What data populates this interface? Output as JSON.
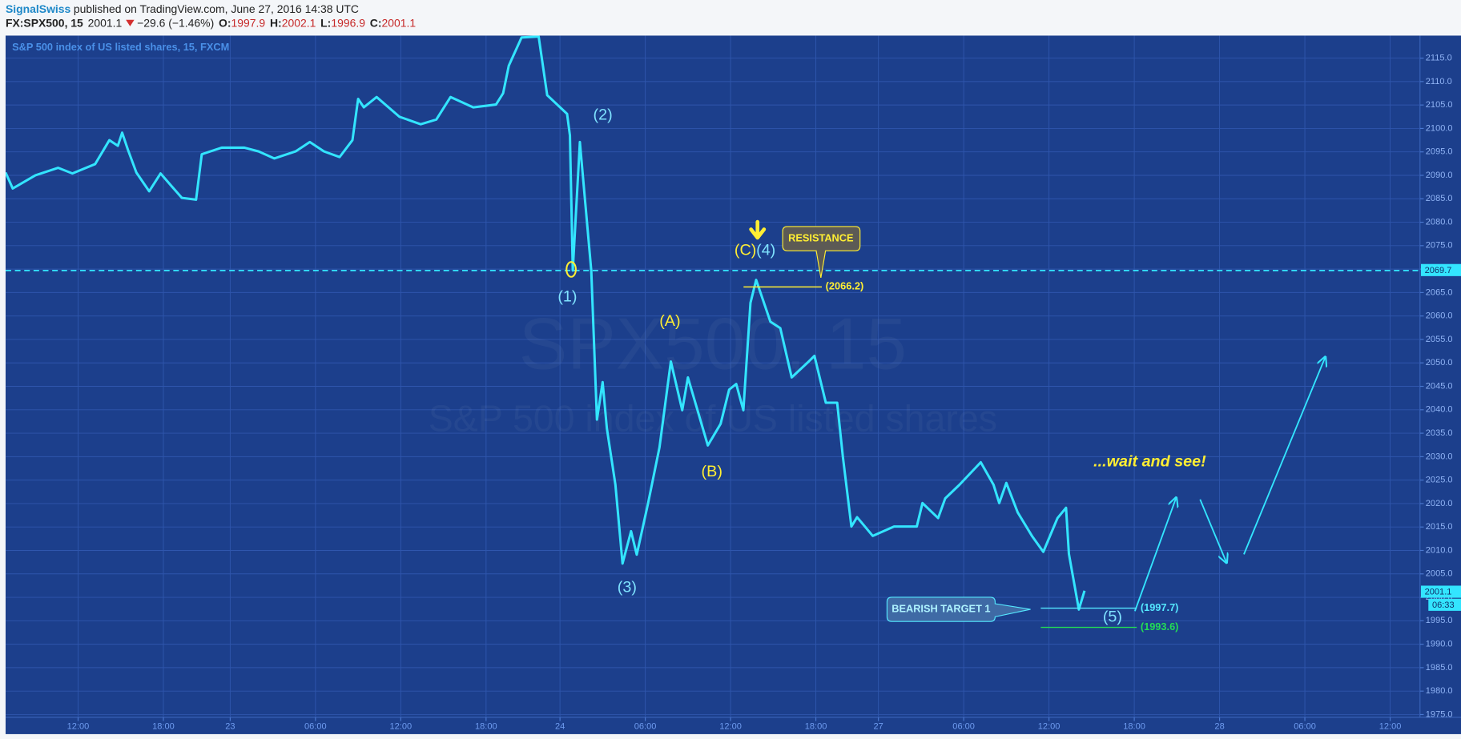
{
  "header": {
    "author": "SignalSwiss",
    "published": "published on TradingView.com, June 27, 2016 14:38 UTC",
    "symbol": "FX:SPX500, 15",
    "last": "2001.1",
    "change": "−29.6 (−1.46%)",
    "open_label": "O:",
    "open": "1997.9",
    "high_label": "H:",
    "high": "2002.1",
    "low_label": "L:",
    "low": "1996.9",
    "close_label": "C:",
    "close": "2001.1"
  },
  "chart_data": {
    "type": "line",
    "watermark": {
      "symbol": "SPX500, 15",
      "description": "S&P 500 index of US listed shares"
    },
    "x": [
      6.9,
      7.4,
      9.0,
      10.6,
      11.6,
      13.2,
      14.2,
      14.8,
      15.1,
      15.5,
      16.1,
      17.0,
      17.8,
      18.6,
      19.3,
      20.3,
      20.7,
      22.1,
      23.7,
      24.7,
      25.8,
      27.3,
      28.3,
      29.3,
      30.4,
      31.3,
      31.7,
      32.1,
      33.0,
      34.6,
      36.1,
      37.2,
      38.2,
      39.8,
      41.4,
      41.9,
      42.3,
      43.2,
      44.4,
      45.0,
      46.4,
      46.6,
      46.8,
      47.3,
      48.1,
      48.5,
      48.9,
      49.2,
      49.8,
      50.3,
      50.9,
      51.3,
      52.1,
      52.9,
      53.7,
      54.5,
      54.9,
      56.3,
      57.2,
      57.8,
      58.3,
      58.8,
      59.3,
      59.7,
      60.7,
      61.4,
      62.2,
      63.4,
      63.8,
      64.6,
      65.4,
      65.8,
      66.4,
      66.8,
      67.9,
      69.4,
      71.0,
      71.4,
      72.5,
      73.0,
      74.0,
      75.5,
      76.4,
      76.8,
      77.3,
      78.1,
      79.1,
      79.9,
      80.9,
      81.5,
      81.7,
      82.4,
      82.8
    ],
    "series": [
      {
        "name": "S&P 500 index of US listed shares, 15, FXCM",
        "color": "#33e5ff",
        "values": [
          2090.6,
          2087.2,
          2090.0,
          2091.6,
          2090.4,
          2092.4,
          2097.5,
          2096.3,
          2099.1,
          2095.5,
          2090.6,
          2086.6,
          2090.4,
          2087.6,
          2085.2,
          2084.8,
          2094.5,
          2095.9,
          2095.9,
          2095.1,
          2093.6,
          2095.1,
          2097.1,
          2095.1,
          2093.9,
          2097.5,
          2106.3,
          2104.5,
          2106.7,
          2102.5,
          2100.9,
          2101.9,
          2106.7,
          2104.5,
          2105.1,
          2107.5,
          2113.4,
          2119.4,
          2119.6,
          2107.1,
          2103.1,
          2098.5,
          2069.7,
          2097.1,
          2069.7,
          2037.9,
          2045.9,
          2036.0,
          2024.0,
          2007.2,
          2014.1,
          2009.1,
          2020.1,
          2032.0,
          2050.3,
          2039.9,
          2046.9,
          2032.4,
          2037.0,
          2044.3,
          2045.5,
          2039.9,
          2062.8,
          2067.7,
          2058.8,
          2057.4,
          2046.9,
          2050.3,
          2051.5,
          2041.5,
          2041.5,
          2030.0,
          2015.1,
          2017.1,
          2013.1,
          2015.1,
          2015.1,
          2020.1,
          2016.9,
          2021.1,
          2024.0,
          2028.8,
          2024.0,
          2020.1,
          2024.4,
          2018.1,
          2013.1,
          2009.7,
          2016.9,
          2019.1,
          2009.3,
          1997.4,
          2001.4
        ]
      }
    ],
    "xlim": [
      6.9,
      106.4
    ],
    "ylim": [
      1974.4,
      2119.8
    ],
    "xticks": [
      {
        "value": 12,
        "label": "12:00"
      },
      {
        "value": 18,
        "label": "18:00"
      },
      {
        "value": 22.7,
        "label": "23"
      },
      {
        "value": 28.7,
        "label": "06:00"
      },
      {
        "value": 34.7,
        "label": "12:00"
      },
      {
        "value": 40.7,
        "label": "18:00"
      },
      {
        "value": 45.9,
        "label": "24"
      },
      {
        "value": 51.9,
        "label": "06:00"
      },
      {
        "value": 57.9,
        "label": "12:00"
      },
      {
        "value": 63.9,
        "label": "18:00"
      },
      {
        "value": 68.3,
        "label": "27"
      },
      {
        "value": 74.3,
        "label": "06:00"
      },
      {
        "value": 80.3,
        "label": "12:00"
      },
      {
        "value": 86.3,
        "label": "18:00"
      },
      {
        "value": 92.3,
        "label": "28"
      },
      {
        "value": 98.3,
        "label": "06:00"
      },
      {
        "value": 104.3,
        "label": "12:00"
      }
    ],
    "yticks": [
      {
        "value": 1975,
        "label": "1975.0"
      },
      {
        "value": 1980,
        "label": "1980.0"
      },
      {
        "value": 1985,
        "label": "1985.0"
      },
      {
        "value": 1990,
        "label": "1990.0"
      },
      {
        "value": 1995,
        "label": "1995.0"
      },
      {
        "value": 2000,
        "label": "2000.0"
      },
      {
        "value": 2005,
        "label": "2005.0"
      },
      {
        "value": 2010,
        "label": "2010.0"
      },
      {
        "value": 2015,
        "label": "2015.0"
      },
      {
        "value": 2020,
        "label": "2020.0"
      },
      {
        "value": 2025,
        "label": "2025.0"
      },
      {
        "value": 2030,
        "label": "2030.0"
      },
      {
        "value": 2035,
        "label": "2035.0"
      },
      {
        "value": 2040,
        "label": "2040.0"
      },
      {
        "value": 2045,
        "label": "2045.0"
      },
      {
        "value": 2050,
        "label": "2050.0"
      },
      {
        "value": 2055,
        "label": "2055.0"
      },
      {
        "value": 2060,
        "label": "2060.0"
      },
      {
        "value": 2065,
        "label": "2065.0"
      },
      {
        "value": 2070,
        "label": "2070.0"
      },
      {
        "value": 2075,
        "label": "2075.0"
      },
      {
        "value": 2080,
        "label": "2080.0"
      },
      {
        "value": 2085,
        "label": "2085.0"
      },
      {
        "value": 2090,
        "label": "2090.0"
      },
      {
        "value": 2095,
        "label": "2095.0"
      },
      {
        "value": 2100,
        "label": "2100.0"
      },
      {
        "value": 2105,
        "label": "2105.0"
      },
      {
        "value": 2110,
        "label": "2110.0"
      },
      {
        "value": 2115,
        "label": "2115.0"
      }
    ],
    "grid": true,
    "dashed_level": 2069.7,
    "last_price": 2001.1,
    "countdown": "06:33",
    "resistance": {
      "text": "RESISTANCE",
      "level": {
        "value": 2066.2,
        "label": "(2066.2)"
      }
    },
    "bearish_target": {
      "text": "BEARISH TARGET 1",
      "levels": [
        {
          "value": 1997.7,
          "label": "(1997.7)",
          "color": "#55e8ff"
        },
        {
          "value": 1993.6,
          "label": "(1993.6)",
          "color": "#22dd55"
        }
      ]
    },
    "annotations": [
      {
        "text": "(1)",
        "color": "#7fe3ff"
      },
      {
        "text": "(2)",
        "color": "#7fe3ff"
      },
      {
        "text": "(3)",
        "color": "#7fe3ff"
      },
      {
        "text": "(4)",
        "color": "#7fe3ff"
      },
      {
        "text": "(5)",
        "color": "#7fe3ff"
      },
      {
        "text": "(A)",
        "color": "#ffee33"
      },
      {
        "text": "(B)",
        "color": "#ffee33"
      },
      {
        "text": "(C)",
        "color": "#ffee33"
      }
    ],
    "note": {
      "text": "...wait and see!",
      "color": "#ffee33"
    }
  }
}
